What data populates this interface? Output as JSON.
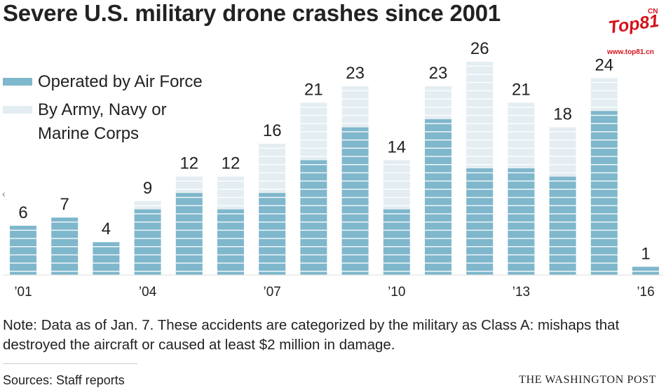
{
  "title": "Severe U.S. military drone crashes since 2001",
  "logo": {
    "text": "Top81",
    "superscript": "CN",
    "url": "www.top81.cn"
  },
  "chart_data": {
    "type": "bar",
    "stacked": true,
    "categories": [
      "2001",
      "2002",
      "2003",
      "2004",
      "2005",
      "2006",
      "2007",
      "2008",
      "2009",
      "2010",
      "2011",
      "2012",
      "2013",
      "2014",
      "2015",
      "2016"
    ],
    "tick_labels": [
      {
        "category": "2001",
        "label": "’01"
      },
      {
        "category": "2004",
        "label": "’04"
      },
      {
        "category": "2007",
        "label": "’07"
      },
      {
        "category": "2010",
        "label": "’10"
      },
      {
        "category": "2013",
        "label": "’13"
      },
      {
        "category": "2016",
        "label": "’16"
      }
    ],
    "series": [
      {
        "name": "Operated by Air Force",
        "color": "#7fb7cc",
        "values": [
          6,
          7,
          4,
          8,
          10,
          8,
          10,
          14,
          18,
          8,
          19,
          13,
          13,
          12,
          20,
          1
        ]
      },
      {
        "name": "By Army, Navy or Marine Corps",
        "color": "#e4edf1",
        "values": [
          0,
          0,
          0,
          1,
          2,
          4,
          6,
          7,
          5,
          6,
          4,
          13,
          8,
          6,
          4,
          0
        ]
      }
    ],
    "totals": [
      6,
      7,
      4,
      9,
      12,
      12,
      16,
      21,
      23,
      14,
      23,
      26,
      21,
      18,
      24,
      1
    ],
    "ylim": [
      0,
      26
    ],
    "grid": false,
    "legend_position": "top-left"
  },
  "note": "Note: Data as of Jan. 7. These accidents are categorized by the military as Class A: mishaps that destroyed the aircraft or caused at least $2 million in damage.",
  "source": "Sources: Staff reports",
  "publisher": "THE WASHINGTON POST",
  "scroll_glyph": "‹"
}
